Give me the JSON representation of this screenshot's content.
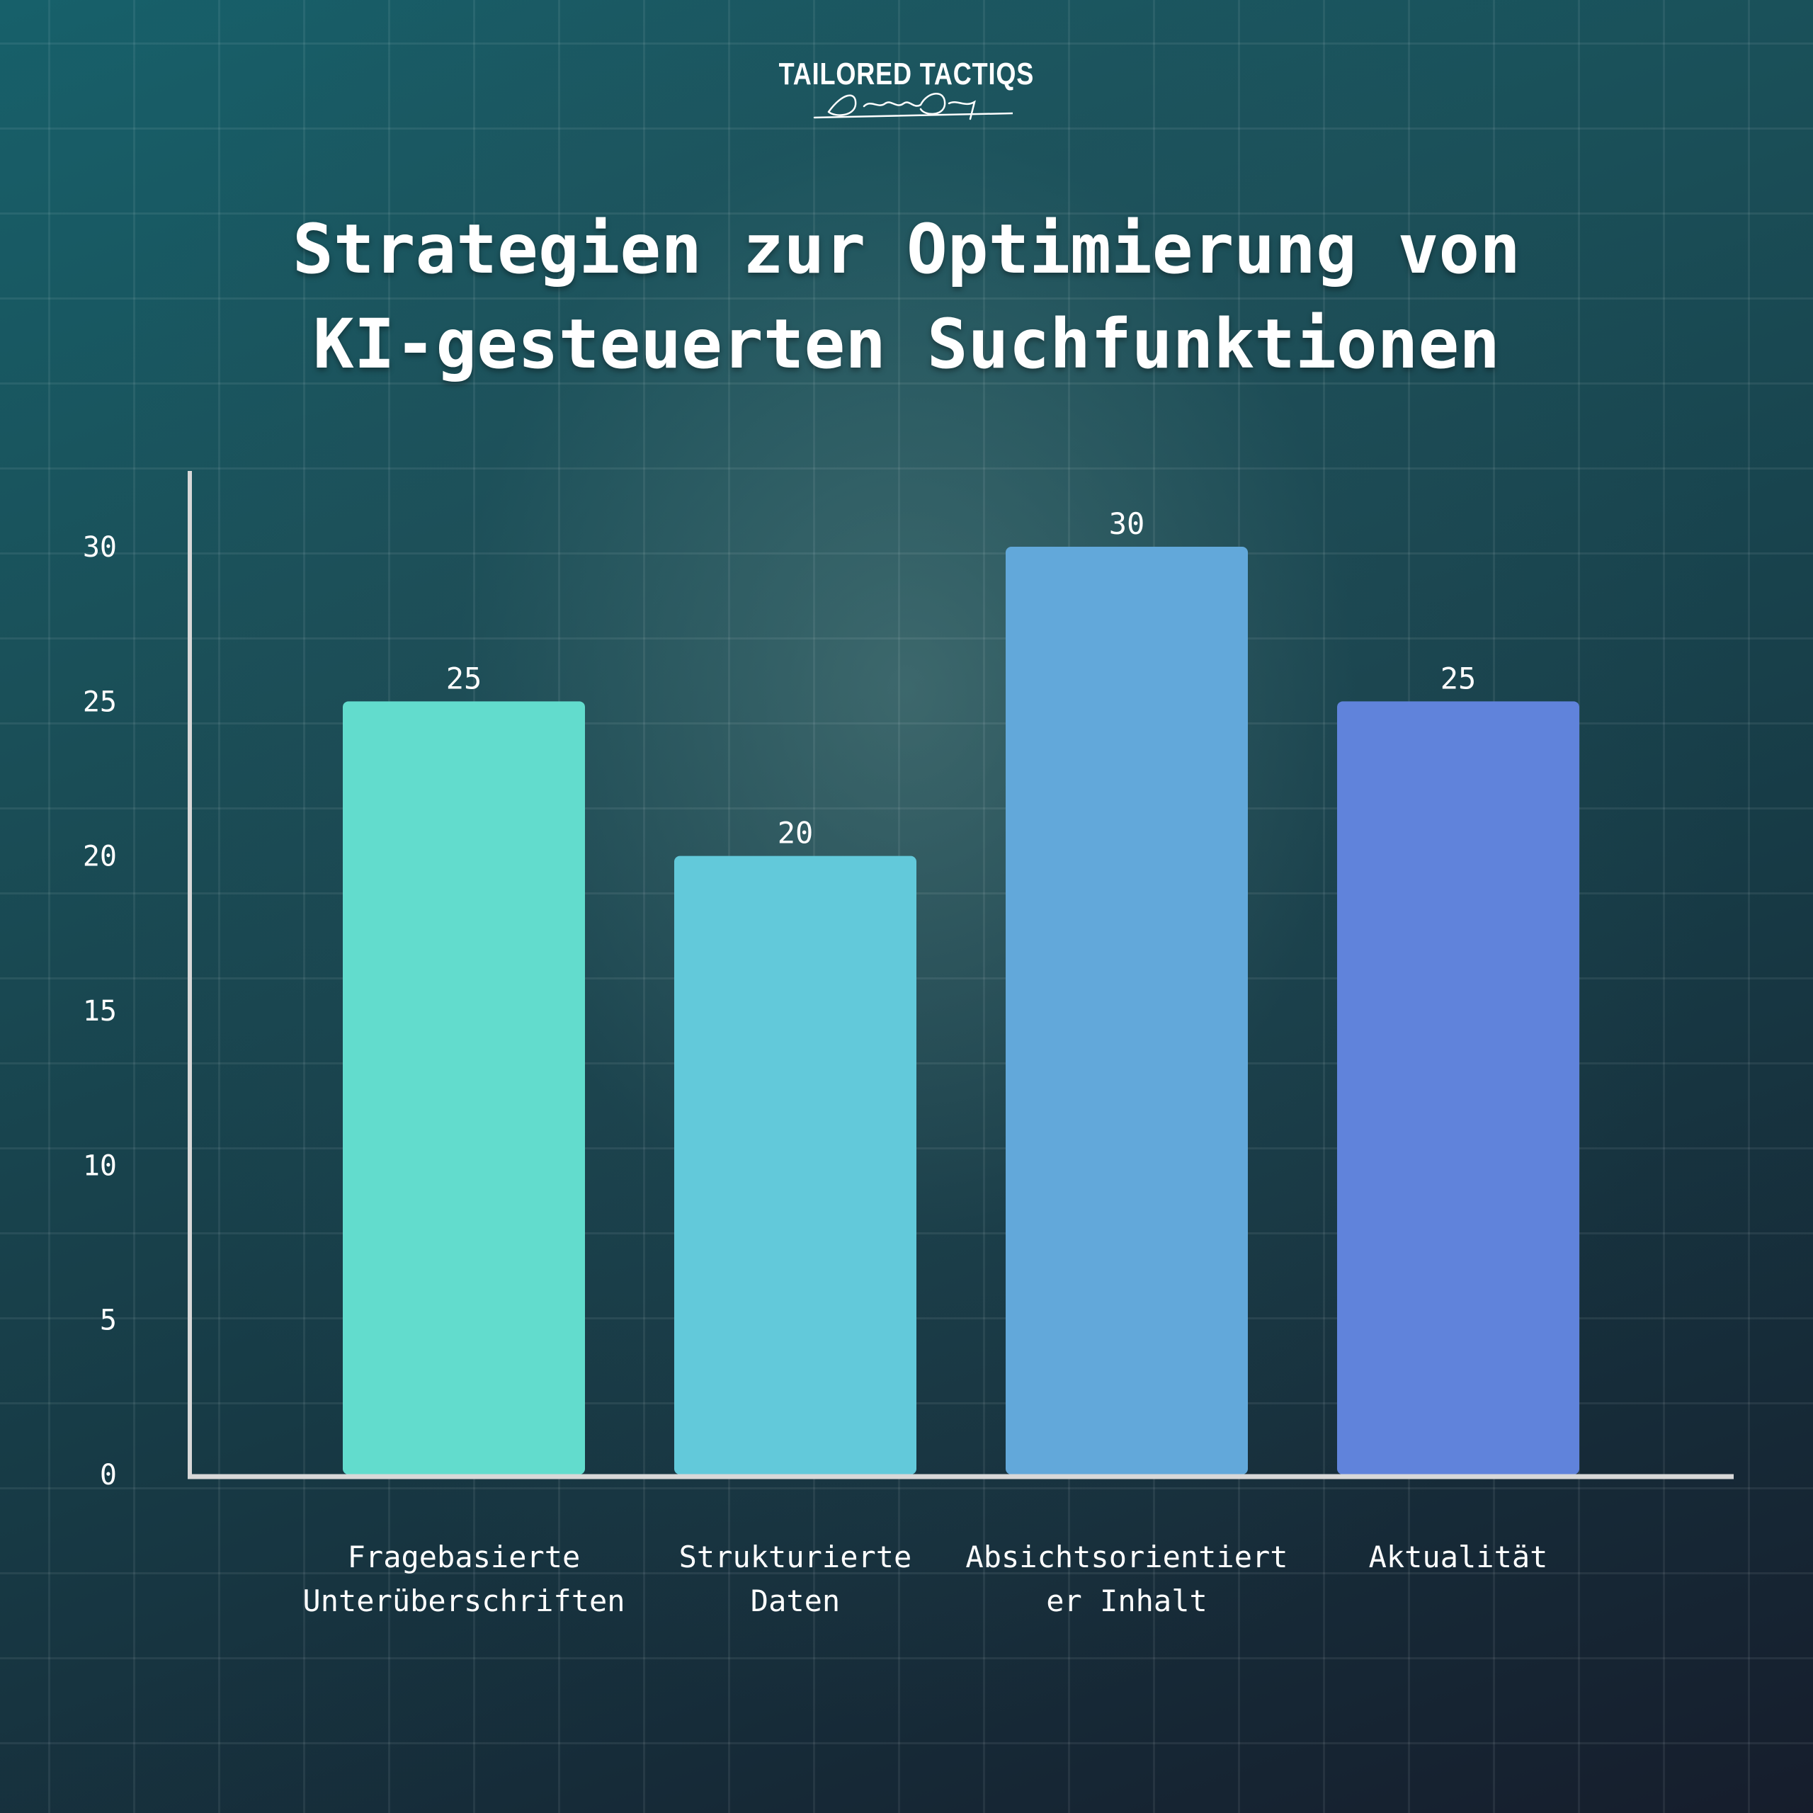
{
  "logo": {
    "wordmark": "TAILORED TACTIQS",
    "signature": "Dennis Quast"
  },
  "chart_data": {
    "type": "bar",
    "title_lines": [
      "Strategien zur Optimierung von",
      "KI-gesteuerten Suchfunktionen"
    ],
    "categories": [
      [
        "Fragebasierte",
        "Unterüberschriften"
      ],
      [
        "Strukturierte",
        "Daten"
      ],
      [
        "Absichtsorientiert",
        "er Inhalt"
      ],
      [
        "Aktualität"
      ]
    ],
    "values": [
      25,
      20,
      30,
      25
    ],
    "colors": [
      "#62dccd",
      "#62c9da",
      "#62a8da",
      "#6083db"
    ],
    "yticks": [
      0,
      5,
      10,
      15,
      20,
      25,
      30
    ],
    "ylim": [
      0,
      30
    ],
    "xlabel": "",
    "ylabel": "",
    "legend": "none",
    "grid": false
  }
}
